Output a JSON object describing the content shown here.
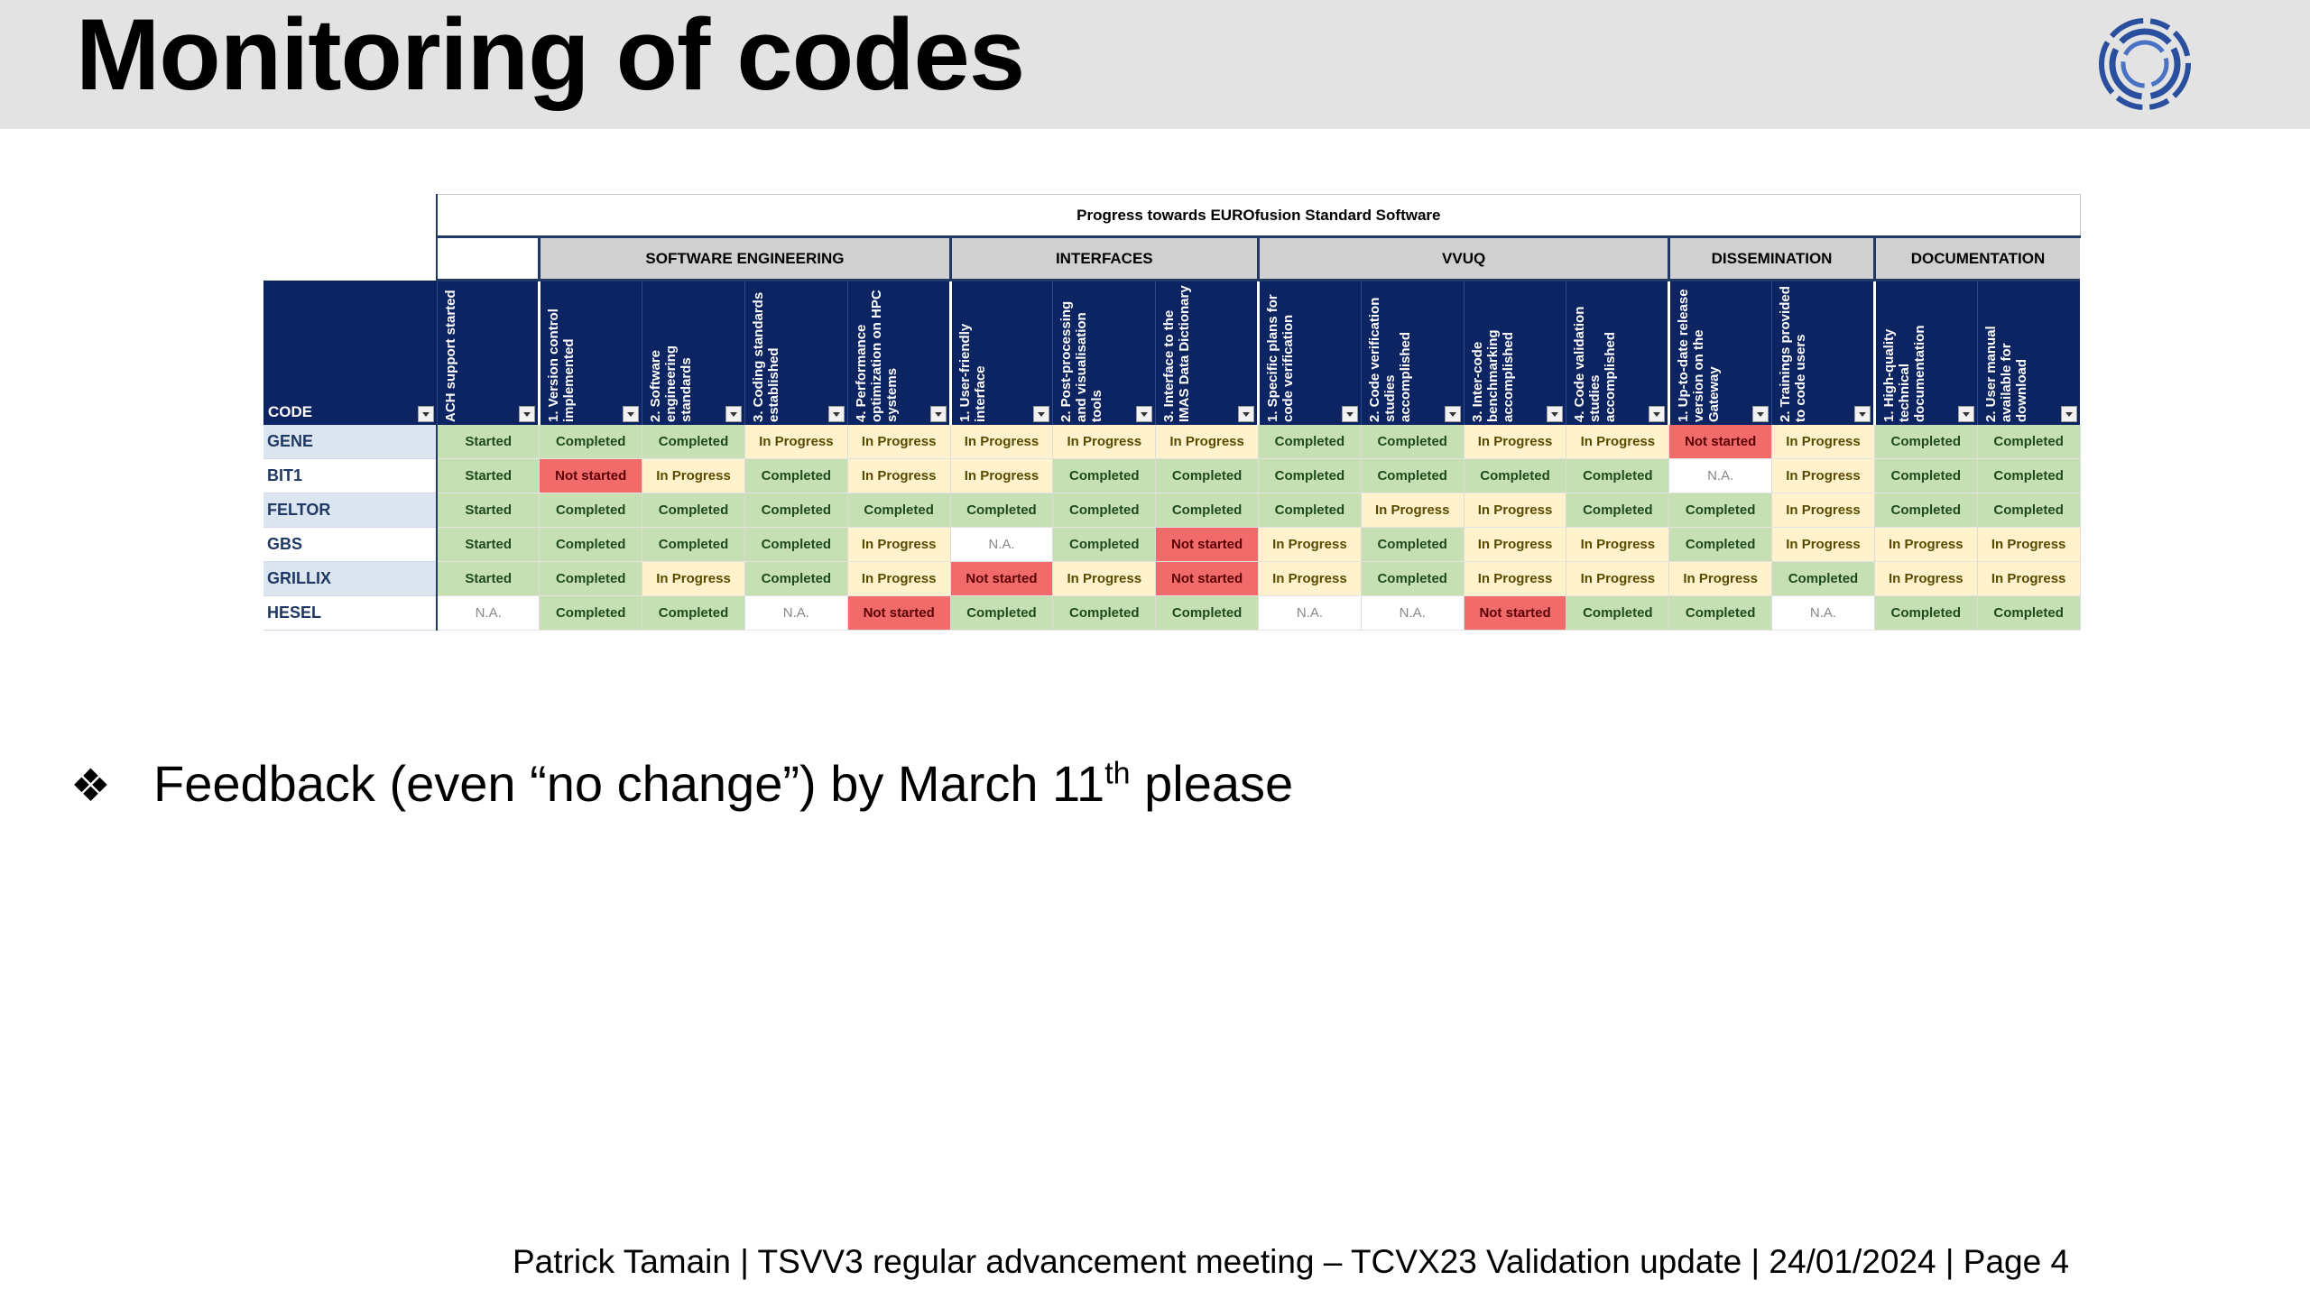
{
  "slide": {
    "title": "Monitoring of codes",
    "logo_icon": "eurofusion-ring-logo-icon"
  },
  "sheet": {
    "progress_title": "Progress towards EUROfusion Standard Software",
    "code_header": "CODE",
    "groups": [
      {
        "label": "",
        "span": 1
      },
      {
        "label": "SOFTWARE ENGINEERING",
        "span": 4
      },
      {
        "label": "INTERFACES",
        "span": 3
      },
      {
        "label": "VVUQ",
        "span": 4
      },
      {
        "label": "DISSEMINATION",
        "span": 2
      },
      {
        "label": "DOCUMENTATION",
        "span": 2
      }
    ],
    "columns": [
      "ACH support started",
      "1. Version control implemented",
      "2. Software engineering standards",
      "3. Coding standards established",
      "4. Performance optimization on HPC systems",
      "1. User-friendly interface",
      "2. Post-processing and visualisation tools",
      "3. Interface to the IMAS Data Dictionary",
      "1. Specific plans for code verification",
      "2. Code verification studies accomplished",
      "3. Inter-code benchmarking accomplished",
      "4. Code validation studies accomplished",
      "1. Up-to-date release version on the Gateway",
      "2. Trainings provided to code users",
      "1. High-quality technical documentation",
      "2. User manual available for download"
    ],
    "rows": [
      {
        "code": "GENE",
        "values": [
          "Started",
          "Completed",
          "Completed",
          "In Progress",
          "In Progress",
          "In Progress",
          "In Progress",
          "In Progress",
          "Completed",
          "Completed",
          "In Progress",
          "In Progress",
          "Not started",
          "In Progress",
          "Completed",
          "Completed"
        ]
      },
      {
        "code": "BIT1",
        "values": [
          "Started",
          "Not started",
          "In Progress",
          "Completed",
          "In Progress",
          "In Progress",
          "Completed",
          "Completed",
          "Completed",
          "Completed",
          "Completed",
          "Completed",
          "N.A.",
          "In Progress",
          "Completed",
          "Completed"
        ]
      },
      {
        "code": "FELTOR",
        "values": [
          "Started",
          "Completed",
          "Completed",
          "Completed",
          "Completed",
          "Completed",
          "Completed",
          "Completed",
          "Completed",
          "In Progress",
          "In Progress",
          "Completed",
          "Completed",
          "In Progress",
          "Completed",
          "Completed"
        ]
      },
      {
        "code": "GBS",
        "values": [
          "Started",
          "Completed",
          "Completed",
          "Completed",
          "In Progress",
          "N.A.",
          "Completed",
          "Not started",
          "In Progress",
          "Completed",
          "In Progress",
          "In Progress",
          "Completed",
          "In Progress",
          "In Progress",
          "In Progress"
        ]
      },
      {
        "code": "GRILLIX",
        "values": [
          "Started",
          "Completed",
          "In Progress",
          "Completed",
          "In Progress",
          "Not started",
          "In Progress",
          "Not started",
          "In Progress",
          "Completed",
          "In Progress",
          "In Progress",
          "In Progress",
          "Completed",
          "In Progress",
          "In Progress"
        ]
      },
      {
        "code": "HESEL",
        "values": [
          "N.A.",
          "Completed",
          "Completed",
          "N.A.",
          "Not started",
          "Completed",
          "Completed",
          "Completed",
          "N.A.",
          "N.A.",
          "Not started",
          "Completed",
          "Completed",
          "N.A.",
          "Completed",
          "Completed"
        ]
      }
    ],
    "status_colors": {
      "Completed": "#c6e0b4",
      "Started": "#c6e0b4",
      "In Progress": "#fff2cc",
      "Not started": "#f26b6b",
      "N.A.": "#ffffff"
    }
  },
  "bullet": {
    "icon": "four-diamond-bullet-icon",
    "text_before": "Feedback (even “no change”) by March 11",
    "sup": "th",
    "text_after": " please"
  },
  "footer": {
    "text": "Patrick Tamain | TSVV3 regular advancement meeting – TCVX23 Validation update  | 24/01/2024 | Page 4"
  }
}
